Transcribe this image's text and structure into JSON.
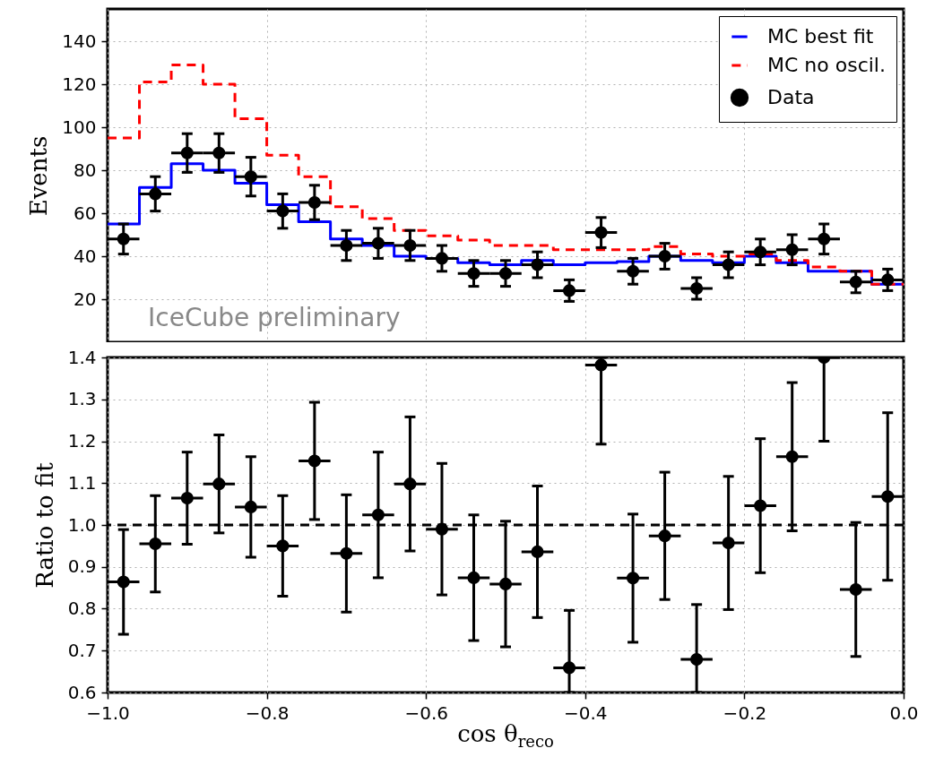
{
  "chart_data": [
    {
      "type": "step",
      "ylabel": "Events",
      "xlim": [
        -1,
        0
      ],
      "xticks": [
        -1,
        -0.8,
        -0.6,
        -0.4,
        -0.2,
        0
      ],
      "ylim": [
        0,
        155
      ],
      "yticks": [
        20,
        40,
        60,
        80,
        100,
        120,
        140
      ],
      "tick_labels": "y",
      "grid": true,
      "legend": "top right",
      "annotations": [
        "IceCube preliminary"
      ],
      "series": [
        {
          "name": "MC best fit",
          "color": "#0000ff",
          "line_style": "solid",
          "x": [
            -1,
            -0.96,
            -0.92,
            -0.88,
            -0.84,
            -0.8,
            -0.76,
            -0.72,
            -0.68,
            -0.64,
            -0.6,
            -0.56,
            -0.52,
            -0.48,
            -0.44,
            -0.4,
            -0.36,
            -0.32,
            -0.28,
            -0.24,
            -0.2,
            -0.16,
            -0.12,
            -0.08,
            -0.04,
            0
          ],
          "values": [
            55,
            72,
            83,
            80,
            74,
            64,
            56,
            48,
            45,
            40,
            39,
            37,
            36,
            38,
            36,
            37,
            37.5,
            40,
            38,
            37,
            40,
            37,
            33,
            33,
            27,
            27
          ]
        },
        {
          "name": "MC no oscil.",
          "color": "#ff0000",
          "line_style": "dashed",
          "x": [
            -1,
            -0.96,
            -0.92,
            -0.88,
            -0.84,
            -0.8,
            -0.76,
            -0.72,
            -0.68,
            -0.64,
            -0.6,
            -0.56,
            -0.52,
            -0.48,
            -0.44,
            -0.4,
            -0.36,
            -0.32,
            -0.28,
            -0.24,
            -0.2,
            -0.16,
            -0.12,
            -0.08,
            -0.04,
            0
          ],
          "values": [
            95,
            121,
            129,
            120,
            104,
            87,
            77,
            63,
            57.5,
            52,
            49.5,
            47.5,
            45,
            45,
            43,
            43,
            43,
            44.5,
            41,
            40,
            41,
            38,
            35,
            33,
            27,
            27
          ]
        },
        {
          "name": "Data",
          "type": "scatter",
          "color": "#000000",
          "marker": "circle",
          "x": [
            -0.98,
            -0.94,
            -0.9,
            -0.86,
            -0.82,
            -0.78,
            -0.74,
            -0.7,
            -0.66,
            -0.62,
            -0.58,
            -0.54,
            -0.5,
            -0.46,
            -0.42,
            -0.38,
            -0.34,
            -0.3,
            -0.26,
            -0.22,
            -0.18,
            -0.14,
            -0.1,
            -0.06,
            -0.02
          ],
          "values": [
            48,
            69,
            88,
            88,
            77,
            61,
            65,
            45,
            46,
            45,
            39,
            32,
            32,
            36,
            24,
            51,
            33,
            40,
            25,
            36,
            42,
            43,
            48,
            28,
            29
          ],
          "errors": [
            7,
            8,
            9,
            9,
            9,
            8,
            8,
            7,
            7,
            7,
            6,
            6,
            6,
            6,
            5,
            7,
            6,
            6,
            5,
            6,
            6,
            7,
            7,
            5,
            5
          ],
          "xerrors": [
            0.02,
            0.02,
            0.02,
            0.02,
            0.02,
            0.02,
            0.02,
            0.02,
            0.02,
            0.02,
            0.02,
            0.02,
            0.02,
            0.02,
            0.02,
            0.02,
            0.02,
            0.02,
            0.02,
            0.02,
            0.02,
            0.02,
            0.02,
            0.02,
            0.02
          ]
        }
      ]
    },
    {
      "type": "scatter",
      "xlabel": "cos θ$_{reco}$",
      "ylabel": "Ratio to fit",
      "xlim": [
        -1,
        0
      ],
      "xticks": [
        {
          "value": -1,
          "label": "−1.0"
        },
        {
          "value": -0.8,
          "label": "−0.8"
        },
        {
          "value": -0.6,
          "label": "−0.6"
        },
        {
          "value": -0.4,
          "label": "−0.4"
        },
        {
          "value": -0.2,
          "label": "−0.2"
        },
        {
          "value": 0,
          "label": "0.0"
        }
      ],
      "ylim": [
        0.6,
        1.4
      ],
      "yticks": [
        0.6,
        0.7,
        0.8,
        0.9,
        {
          "value": 1,
          "label": "1.0"
        },
        1.1,
        1.2,
        1.3,
        1.4
      ],
      "grid": true,
      "marker": "circle",
      "ref_lines": [
        {
          "axis": "y",
          "value": 1,
          "color": "#000000",
          "line_style": "dashed"
        }
      ],
      "series": [
        {
          "color": "#000000",
          "x": [
            -0.98,
            -0.94,
            -0.9,
            -0.86,
            -0.82,
            -0.78,
            -0.74,
            -0.7,
            -0.66,
            -0.62,
            -0.58,
            -0.54,
            -0.5,
            -0.46,
            -0.42,
            -0.38,
            -0.34,
            -0.3,
            -0.26,
            -0.22,
            -0.18,
            -0.14,
            -0.1,
            -0.06,
            -0.02
          ],
          "values": [
            0.864,
            0.955,
            1.064,
            1.098,
            1.043,
            0.95,
            1.153,
            0.932,
            1.024,
            1.098,
            0.99,
            0.874,
            0.859,
            0.936,
            0.659,
            1.382,
            0.873,
            0.974,
            0.679,
            0.957,
            1.046,
            1.163,
            1.4,
            0.846,
            1.068
          ],
          "errors": [
            0.125,
            0.115,
            0.11,
            0.117,
            0.12,
            0.12,
            0.14,
            0.14,
            0.15,
            0.16,
            0.157,
            0.15,
            0.15,
            0.157,
            [
              0.6,
              0.796
            ],
            [
              1.193,
              1.4
            ],
            0.153,
            0.152,
            [
              0.6,
              0.81
            ],
            0.159,
            0.16,
            0.177,
            [
              1.2,
              1.4
            ],
            0.16,
            0.2
          ],
          "xerrors": [
            0.02,
            0.02,
            0.02,
            0.02,
            0.02,
            0.02,
            0.02,
            0.02,
            0.02,
            0.02,
            0.02,
            0.02,
            0.02,
            0.02,
            0.02,
            0.02,
            0.02,
            0.02,
            0.02,
            0.02,
            0.02,
            0.02,
            0.02,
            0.02,
            0.02
          ]
        }
      ]
    }
  ]
}
